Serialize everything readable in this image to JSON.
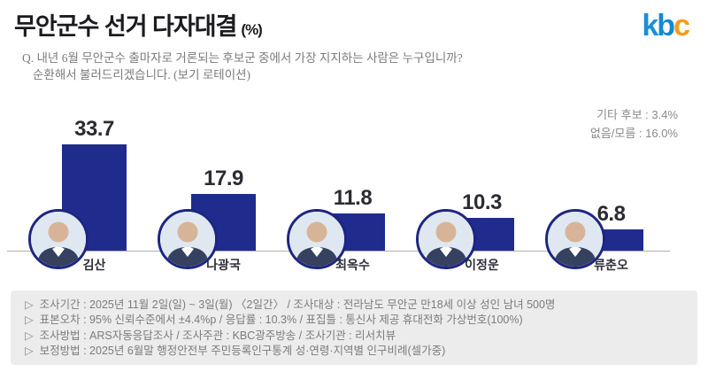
{
  "header": {
    "title": "무안군수 선거 다자대결",
    "unit_suffix": "(%)",
    "logo_text": "kbc"
  },
  "question": {
    "line1": "Q. 내년 6월 무안군수 출마자로 거론되는 후보군 중에서 가장 지지하는 사람은 누구입니까?",
    "line2": "순환해서 불러드리겠습니다. (보기 로테이션)"
  },
  "side_note": {
    "line1": "기타 후보 : 3.4%",
    "line2": "없음/모름 : 16.0%"
  },
  "chart_data": {
    "type": "bar",
    "title": "무안군수 선거 다자대결 (%)",
    "categories": [
      "김산",
      "나광국",
      "최옥수",
      "이정운",
      "류춘오"
    ],
    "values": [
      33.7,
      17.9,
      11.8,
      10.3,
      6.8
    ],
    "value_unit": "%",
    "xlabel": "",
    "ylabel": "",
    "ylim": [
      0,
      40
    ],
    "grid": false,
    "legend": "none",
    "bar_color": "#202b8e",
    "other_responses": {
      "기타 후보": 3.4,
      "없음/모름": 16.0
    }
  },
  "footer": {
    "bullet": "▷",
    "lines": [
      "조사기간 : 2025년 11월 2일(일) ~ 3일(월) 〈2일간〉 / 조사대상 : 전라남도 무안군 만18세 이상 성인 남녀 500명",
      "표본오차 : 95% 신뢰수준에서 ±4.4%p / 응답률 : 10.3% / 표집틀 : 통신사 제공 휴대전화 가상번호(100%)",
      "조사방법 : ARS자동응답조사 / 조사주관 : KBC광주방송 / 조사기관 : 리서치뷰",
      "보정방법 : 2025년 6월말 행정안전부 주민등록인구통계 성·연령·지역별 인구비례(셀가중)"
    ]
  }
}
